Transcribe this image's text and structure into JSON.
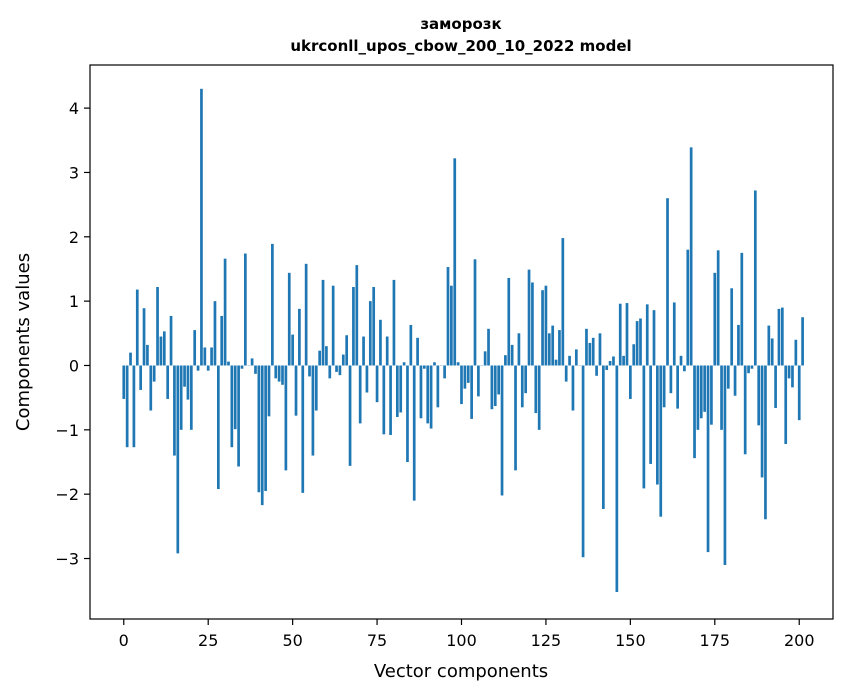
{
  "chart_data": {
    "type": "bar",
    "title": "заморозк",
    "subtitle": "ukrconll_upos_cbow_200_10_2022 model",
    "xlabel": "Vector components",
    "ylabel": "Components values",
    "xlim": [
      -10,
      210
    ],
    "ylim": [
      -3.94,
      4.67
    ],
    "xticks": [
      0,
      25,
      50,
      75,
      100,
      125,
      150,
      175,
      200
    ],
    "yticks": [
      -3,
      -2,
      -1,
      0,
      1,
      2,
      3,
      4
    ],
    "grid": false,
    "bar_color": "#1f77b4",
    "series": [
      {
        "values": [
          -0.52,
          -1.27,
          0.2,
          -1.27,
          1.18,
          -0.38,
          0.89,
          0.32,
          -0.7,
          -0.25,
          1.22,
          0.45,
          0.53,
          -0.52,
          0.77,
          -1.4,
          -2.92,
          -1.0,
          -0.33,
          -0.53,
          -1.0,
          0.55,
          -0.08,
          4.3,
          0.28,
          -0.08,
          0.28,
          1.0,
          -1.92,
          0.77,
          1.66,
          0.06,
          -1.27,
          -0.99,
          -1.57,
          -0.05,
          1.74,
          0.0,
          0.11,
          -0.13,
          -1.97,
          -2.17,
          -1.95,
          -0.79,
          1.89,
          -0.2,
          -0.25,
          -0.3,
          -1.63,
          1.44,
          0.48,
          -0.78,
          0.88,
          -1.98,
          1.58,
          -0.17,
          -1.4,
          -0.7,
          0.23,
          1.33,
          0.3,
          -0.2,
          1.24,
          -0.1,
          -0.15,
          0.17,
          0.47,
          -1.56,
          1.22,
          1.56,
          -0.9,
          0.45,
          -0.42,
          1.0,
          1.22,
          -0.57,
          0.71,
          -1.07,
          0.45,
          -1.08,
          1.33,
          -0.8,
          -0.73,
          0.05,
          -1.5,
          0.63,
          -2.1,
          0.43,
          -0.82,
          -0.05,
          -0.9,
          -0.98,
          0.05,
          -0.65,
          0.0,
          -0.2,
          1.53,
          1.24,
          3.22,
          0.05,
          -0.6,
          -0.36,
          -0.27,
          -0.83,
          1.65,
          -0.48,
          0.0,
          0.22,
          0.57,
          -0.68,
          -0.63,
          -0.45,
          -2.02,
          0.16,
          1.36,
          0.32,
          -1.63,
          0.5,
          -0.65,
          -0.43,
          1.49,
          1.29,
          -0.74,
          -1.0,
          1.17,
          1.24,
          0.5,
          0.62,
          0.09,
          0.55,
          1.98,
          -0.25,
          0.15,
          -0.7,
          0.25,
          0.0,
          -2.98,
          0.57,
          0.35,
          0.43,
          -0.16,
          0.5,
          -2.23,
          -0.07,
          0.07,
          0.14,
          -3.52,
          0.96,
          0.15,
          0.97,
          -0.52,
          0.33,
          0.69,
          0.73,
          -1.91,
          0.95,
          -1.53,
          0.86,
          -1.85,
          -2.35,
          -0.65,
          2.6,
          -0.43,
          0.98,
          -0.67,
          0.15,
          -0.09,
          1.8,
          3.39,
          -1.44,
          -1.0,
          -0.82,
          -0.72,
          -2.9,
          -0.92,
          1.44,
          1.79,
          -1.0,
          -3.1,
          -0.36,
          1.2,
          -0.47,
          0.63,
          1.75,
          -1.38,
          -0.12,
          -0.05,
          2.72,
          -0.93,
          -1.74,
          -2.39,
          0.62,
          0.42,
          -0.66,
          0.88,
          0.9,
          -1.22,
          -0.2,
          -0.34,
          0.4,
          -0.85,
          0.75
        ]
      }
    ]
  }
}
